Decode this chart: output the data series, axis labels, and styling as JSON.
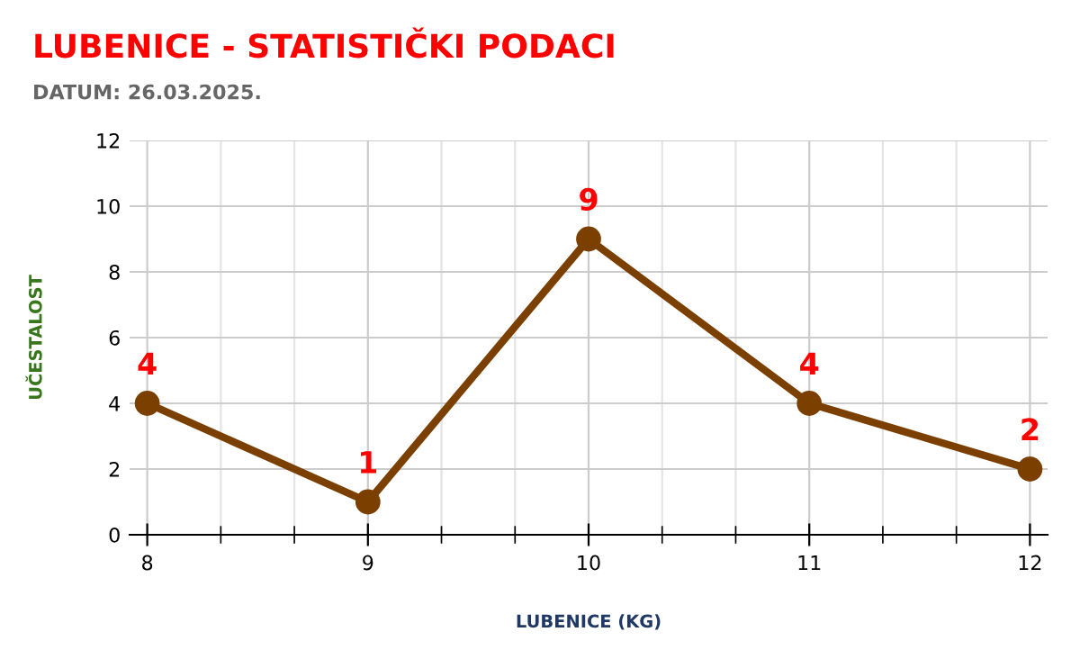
{
  "chart_data": {
    "type": "line",
    "title": "LUBENICE - STATISTIČKI PODACI",
    "subtitle": "DATUM: 26.03.2025.",
    "xlabel": "LUBENICE (KG)",
    "ylabel": "UČESTALOST",
    "x": [
      8,
      9,
      10,
      11,
      12
    ],
    "series": [
      {
        "color": "#7b3f00",
        "values": [
          4,
          1,
          9,
          4,
          2
        ]
      }
    ],
    "xlim": [
      7.92,
      12.08
    ],
    "xticks": [
      8,
      9,
      10,
      11,
      12
    ],
    "ylim": [
      0,
      12
    ],
    "yticks": [
      0,
      2,
      4,
      6,
      8,
      10,
      12
    ],
    "grid": true,
    "marker": "circle",
    "line_style": "solid",
    "data_labels": true
  }
}
